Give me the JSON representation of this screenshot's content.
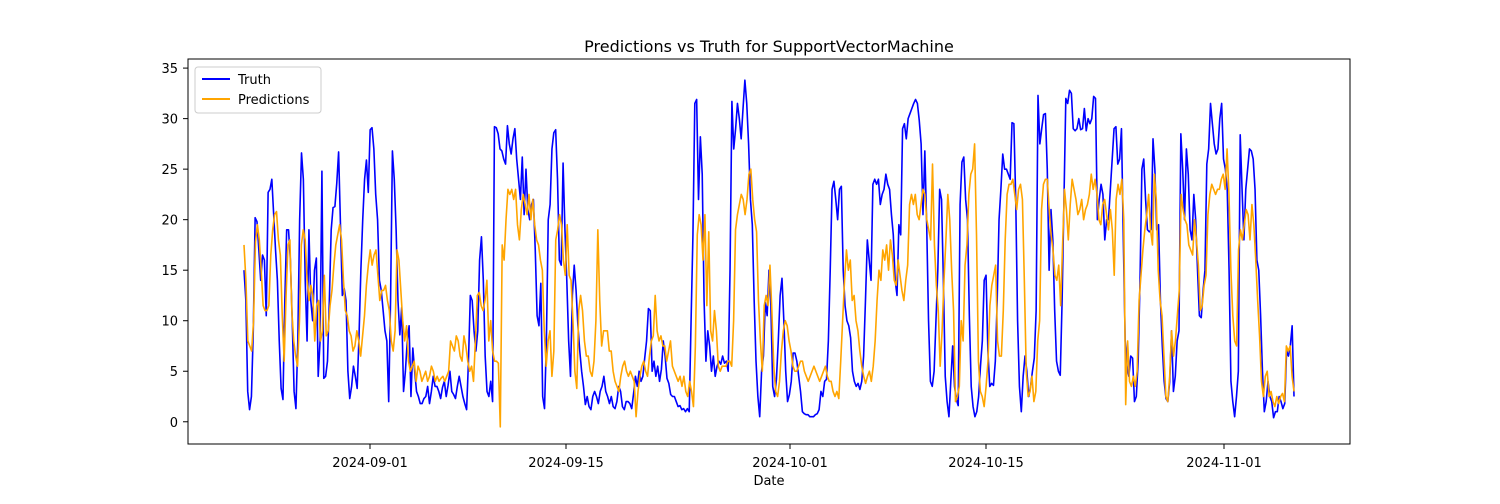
{
  "chart_data": {
    "type": "line",
    "title": "Predictions vs Truth for SupportVectorMachine",
    "xlabel": "Date",
    "ylabel": "",
    "x_ticks": [
      "2024-09-01",
      "2024-09-15",
      "2024-10-01",
      "2024-10-15",
      "2024-11-01"
    ],
    "y_ticks": [
      0,
      5,
      10,
      15,
      20,
      25,
      30,
      35
    ],
    "xlim": [
      "2024-08-19",
      "2024-11-10"
    ],
    "ylim": [
      -2.2,
      35.9
    ],
    "grid": false,
    "legend_position": "top-left",
    "x_start": "2024-08-23",
    "x_end": "2024-11-06",
    "series": [
      {
        "name": "Truth",
        "color": "#0000ff",
        "values": [
          15.0,
          12.0,
          3.0,
          1.2,
          2.5,
          9.0,
          20.2,
          19.8,
          17.0,
          14.0,
          16.5,
          16.0,
          10.5,
          22.7,
          23.0,
          24.0,
          20.5,
          17.0,
          14.0,
          8.0,
          3.3,
          2.2,
          12.0,
          19.0,
          19.0,
          16.0,
          10.0,
          3.0,
          1.3,
          8.0,
          20.0,
          26.6,
          24.0,
          14.0,
          8.0,
          19.0,
          12.0,
          10.0,
          15.0,
          16.2,
          4.5,
          8.0,
          24.8,
          4.3,
          4.5,
          6.0,
          12.0,
          19.0,
          21.2,
          21.3,
          23.6,
          26.7,
          19.5,
          12.5,
          13.2,
          12.0,
          5.0,
          2.3,
          3.5,
          5.5,
          4.5,
          3.3,
          8.5,
          15.0,
          20.0,
          24.0,
          25.9,
          22.7,
          28.9,
          29.1,
          27.0,
          22.5,
          20.0,
          14.0,
          13.0,
          11.0,
          9.0,
          8.0,
          2.0,
          12.0,
          26.8,
          24.0,
          19.0,
          12.0,
          8.6,
          11.3,
          3.0,
          5.0,
          8.0,
          9.5,
          2.5,
          7.3,
          5.0,
          3.0,
          2.5,
          1.8,
          1.8,
          2.3,
          2.5,
          3.5,
          1.8,
          3.0,
          4.5,
          3.5,
          3.5,
          3.0,
          2.3,
          3.4,
          4.0,
          2.5,
          3.6,
          5.0,
          3.0,
          2.7,
          2.3,
          3.5,
          4.5,
          3.5,
          2.5,
          1.8,
          1.2,
          6.0,
          12.5,
          12.0,
          9.0,
          7.0,
          9.0,
          16.0,
          18.3,
          14.0,
          6.5,
          3.0,
          2.5,
          4.0,
          2.0,
          29.2,
          29.1,
          28.5,
          27.0,
          26.8,
          26.0,
          25.5,
          29.3,
          27.5,
          26.5,
          28.0,
          29.0,
          26.0,
          24.0,
          22.0,
          26.2,
          20.5,
          25.0,
          21.0,
          20.0,
          21.5,
          22.0,
          17.0,
          10.5,
          9.5,
          13.7,
          2.5,
          1.3,
          8.0,
          20.0,
          21.5,
          27.0,
          28.6,
          28.9,
          24.0,
          16.0,
          15.5,
          25.6,
          19.0,
          14.0,
          8.0,
          4.5,
          12.5,
          15.5,
          13.0,
          9.5,
          7.0,
          5.0,
          3.5,
          1.7,
          2.5,
          1.5,
          1.2,
          2.5,
          3.0,
          2.5,
          1.8,
          3.0,
          3.5,
          4.5,
          3.0,
          2.5,
          1.8,
          2.5,
          1.5,
          1.3,
          2.0,
          3.5,
          3.0,
          1.5,
          1.2,
          2.0,
          2.0,
          1.8,
          1.3,
          2.8,
          4.5,
          3.5,
          5.0,
          4.0,
          4.5,
          6.3,
          8.0,
          11.2,
          11.0,
          5.0,
          6.0,
          4.5,
          5.5,
          4.0,
          5.2,
          8.0,
          6.5,
          4.3,
          3.8,
          2.7,
          2.5,
          2.5,
          2.0,
          1.5,
          1.6,
          1.2,
          1.3,
          1.0,
          1.3,
          1.0,
          10.0,
          18.5,
          31.5,
          31.9,
          22.0,
          28.2,
          24.5,
          12.0,
          6.0,
          9.0,
          7.5,
          5.0,
          6.5,
          4.5,
          5.5,
          6.0,
          5.7,
          6.5,
          5.8,
          6.0,
          5.0,
          15.0,
          31.7,
          27.0,
          29.0,
          31.5,
          30.0,
          28.0,
          31.0,
          33.8,
          31.5,
          27.5,
          22.0,
          19.5,
          12.0,
          6.0,
          2.5,
          0.5,
          5.0,
          6.5,
          11.8,
          10.5,
          15.0,
          11.5,
          3.5,
          2.5,
          4.2,
          8.0,
          12.5,
          14.2,
          10.0,
          5.0,
          2.0,
          2.7,
          4.0,
          6.8,
          6.8,
          6.0,
          4.5,
          3.0,
          1.0,
          0.8,
          0.7,
          0.7,
          0.5,
          0.5,
          0.5,
          0.7,
          0.8,
          1.2,
          3.0,
          2.5,
          4.0,
          4.2,
          8.0,
          15.0,
          23.0,
          23.8,
          22.0,
          20.0,
          23.0,
          23.3,
          15.0,
          11.5,
          10.0,
          9.5,
          8.3,
          5.0,
          4.0,
          3.5,
          3.8,
          3.2,
          4.0,
          6.5,
          12.0,
          18.0,
          16.0,
          14.0,
          23.5,
          24.0,
          23.5,
          24.0,
          21.5,
          22.5,
          23.0,
          24.5,
          23.5,
          23.0,
          20.5,
          18.5,
          14.0,
          12.5,
          19.5,
          18.5,
          29.0,
          29.5,
          28.0,
          30.0,
          30.5,
          31.0,
          31.5,
          31.9,
          31.5,
          29.8,
          27.5,
          20.5,
          26.8,
          19.5,
          10.0,
          4.0,
          3.5,
          5.0,
          10.0,
          15.0,
          23.0,
          22.0,
          14.0,
          4.5,
          2.0,
          0.5,
          4.0,
          7.5,
          3.5,
          2.2,
          1.6,
          21.5,
          25.7,
          26.2,
          22.0,
          20.0,
          10.5,
          3.5,
          1.5,
          0.5,
          1.0,
          2.5,
          5.5,
          8.0,
          14.0,
          14.5,
          7.0,
          3.5,
          3.8,
          3.6,
          6.0,
          12.0,
          20.0,
          23.0,
          26.5,
          25.0,
          25.0,
          24.5,
          24.0,
          29.6,
          29.5,
          22.0,
          10.0,
          3.5,
          1.0,
          4.5,
          6.5,
          5.0,
          2.5,
          3.5,
          5.0,
          6.3,
          11.0,
          32.3,
          27.5,
          29.0,
          30.4,
          30.5,
          25.0,
          15.0,
          21.0,
          18.0,
          11.0,
          6.0,
          5.0,
          4.6,
          12.0,
          22.0,
          32.0,
          31.5,
          32.8,
          32.5,
          29.0,
          28.8,
          29.0,
          30.0,
          28.9,
          29.0,
          31.0,
          28.8,
          30.0,
          29.5,
          30.0,
          32.2,
          32.0,
          20.0,
          22.0,
          23.5,
          22.5,
          18.0,
          20.0,
          20.0,
          23.0,
          26.0,
          29.0,
          29.2,
          25.5,
          26.0,
          29.0,
          18.0,
          8.0,
          5.5,
          4.5,
          6.5,
          6.3,
          2.0,
          2.5,
          6.0,
          14.0,
          25.0,
          26.0,
          22.0,
          19.0,
          18.8,
          19.0,
          28.0,
          25.0,
          19.0,
          19.5,
          12.0,
          7.5,
          4.0,
          2.3,
          2.0,
          4.0,
          9.0,
          3.0,
          4.5,
          8.0,
          9.0,
          28.5,
          25.0,
          20.0,
          27.0,
          24.5,
          19.0,
          18.0,
          22.5,
          20.0,
          15.0,
          10.5,
          10.3,
          13.0,
          15.0,
          25.5,
          27.0,
          31.5,
          29.5,
          27.5,
          26.5,
          27.0,
          30.0,
          31.5,
          26.0,
          25.0,
          23.0,
          15.0,
          4.0,
          2.0,
          0.5,
          2.5,
          5.0,
          28.4,
          23.0,
          18.0,
          23.0,
          25.0,
          27.0,
          26.8,
          26.0,
          23.0,
          16.0,
          15.0,
          10.5,
          5.0,
          1.0,
          2.0,
          4.0,
          2.5,
          2.0,
          0.4,
          1.0,
          1.0,
          2.5,
          2.0,
          1.3,
          1.8,
          7.0,
          6.5,
          7.5,
          9.5,
          2.5
        ]
      },
      {
        "name": "Predictions",
        "color": "#ffa500",
        "values": [
          17.5,
          14.0,
          8.0,
          7.5,
          7.0,
          10.0,
          17.8,
          19.5,
          18.0,
          15.0,
          11.5,
          11.0,
          11.0,
          11.5,
          16.5,
          19.0,
          20.5,
          20.8,
          18.0,
          16.5,
          10.5,
          6.0,
          12.5,
          17.5,
          18.0,
          11.0,
          8.0,
          6.5,
          5.5,
          10.0,
          17.5,
          19.0,
          18.0,
          14.0,
          12.0,
          13.5,
          12.5,
          8.0,
          11.5,
          12.0,
          8.0,
          9.0,
          14.5,
          8.5,
          9.0,
          11.5,
          13.0,
          15.5,
          17.5,
          18.5,
          19.5,
          18.0,
          14.0,
          11.0,
          10.5,
          9.0,
          8.5,
          7.0,
          7.5,
          9.0,
          8.0,
          6.5,
          8.5,
          10.5,
          13.5,
          15.5,
          17.0,
          15.5,
          16.5,
          17.0,
          14.5,
          12.0,
          13.0,
          13.0,
          13.5,
          12.0,
          11.0,
          8.0,
          7.0,
          9.0,
          17.0,
          16.0,
          13.0,
          10.0,
          8.0,
          9.5,
          6.0,
          5.0,
          5.5,
          6.0,
          4.0,
          5.5,
          5.0,
          4.0,
          4.5,
          5.0,
          4.0,
          4.5,
          5.5,
          5.0,
          4.0,
          4.5,
          4.0,
          4.3,
          4.5,
          4.0,
          4.5,
          5.0,
          8.0,
          7.5,
          7.0,
          8.5,
          8.0,
          6.5,
          6.0,
          8.5,
          7.5,
          6.0,
          5.0,
          5.5,
          4.0,
          8.0,
          12.5,
          12.8,
          11.5,
          11.0,
          12.0,
          14.0,
          8.0,
          10.0,
          7.0,
          6.0,
          6.0,
          5.8,
          -0.5,
          17.5,
          16.0,
          20.0,
          23.0,
          22.5,
          23.0,
          22.0,
          23.0,
          19.5,
          18.0,
          21.0,
          22.5,
          21.5,
          20.5,
          22.5,
          20.0,
          22.0,
          19.5,
          18.0,
          17.5,
          16.0,
          15.0,
          9.0,
          5.5,
          8.0,
          9.0,
          4.5,
          7.0,
          18.0,
          19.0,
          20.5,
          19.5,
          16.0,
          14.5,
          19.5,
          14.5,
          14.0,
          10.0,
          5.0,
          3.3,
          11.0,
          12.5,
          11.0,
          8.0,
          6.5,
          6.5,
          5.0,
          4.5,
          6.0,
          10.0,
          19.0,
          12.0,
          7.5,
          9.0,
          9.0,
          9.0,
          7.0,
          7.0,
          5.0,
          4.0,
          3.5,
          3.0,
          4.5,
          5.5,
          6.0,
          5.0,
          4.5,
          5.0,
          4.5,
          4.0,
          0.5,
          3.0,
          4.5,
          5.5,
          6.0,
          5.0,
          4.5,
          6.5,
          8.0,
          8.5,
          12.5,
          9.0,
          8.0,
          8.5,
          7.5,
          7.5,
          6.0,
          7.0,
          8.0,
          5.5,
          5.0,
          4.5,
          4.0,
          4.5,
          3.5,
          4.5,
          3.0,
          2.5,
          4.0,
          3.0,
          1.5,
          7.5,
          18.5,
          20.5,
          19.5,
          16.0,
          20.5,
          11.5,
          18.8,
          9.0,
          8.0,
          11.0,
          9.0,
          5.5,
          5.0,
          5.5,
          5.5,
          5.5,
          6.0,
          6.0,
          5.5,
          10.0,
          19.0,
          20.5,
          21.5,
          22.5,
          22.0,
          20.5,
          22.0,
          24.5,
          25.0,
          22.0,
          20.0,
          18.8,
          12.0,
          8.0,
          5.0,
          11.5,
          12.5,
          11.5,
          15.5,
          11.0,
          5.5,
          3.0,
          2.5,
          4.0,
          7.0,
          9.0,
          10.0,
          9.5,
          8.0,
          7.0,
          5.5,
          5.0,
          5.0,
          5.5,
          6.0,
          6.0,
          5.0,
          4.5,
          4.0,
          4.5,
          5.0,
          5.5,
          5.0,
          4.5,
          4.0,
          4.5,
          5.0,
          5.5,
          4.5,
          4.0,
          4.0,
          3.0,
          2.5,
          3.0,
          2.3,
          6.0,
          10.0,
          14.0,
          17.0,
          15.0,
          16.0,
          12.0,
          12.5,
          10.0,
          9.0,
          7.0,
          5.5,
          4.5,
          3.8,
          4.5,
          5.0,
          4.0,
          5.5,
          8.0,
          12.0,
          15.0,
          14.0,
          17.0,
          16.0,
          17.5,
          15.0,
          18.0,
          16.5,
          14.0,
          13.5,
          16.0,
          14.5,
          13.0,
          12.0,
          14.0,
          15.5,
          21.5,
          22.5,
          21.5,
          22.5,
          20.5,
          20.0,
          21.5,
          23.0,
          22.5,
          20.0,
          19.0,
          18.0,
          25.5,
          17.5,
          13.5,
          11.0,
          5.5,
          9.0,
          14.0,
          18.0,
          22.5,
          20.0,
          15.0,
          11.0,
          2.0,
          2.5,
          3.5,
          10.0,
          8.0,
          15.5,
          17.5,
          22.5,
          24.5,
          25.0,
          27.5,
          18.5,
          6.0,
          3.0,
          2.5,
          1.5,
          3.5,
          6.0,
          11.5,
          13.5,
          14.5,
          15.5,
          8.0,
          6.5,
          6.5,
          11.0,
          18.0,
          22.5,
          23.5,
          23.5,
          24.0,
          22.5,
          21.0,
          23.0,
          23.5,
          22.0,
          14.0,
          5.0,
          2.5,
          3.0,
          4.5,
          2.0,
          3.0,
          8.0,
          10.0,
          21.0,
          23.5,
          24.0,
          24.0,
          21.0,
          18.5,
          17.0,
          14.5,
          14.0,
          15.5,
          11.5,
          17.5,
          23.0,
          21.0,
          18.0,
          21.5,
          24.0,
          23.0,
          22.0,
          20.5,
          21.0,
          22.0,
          20.0,
          21.0,
          21.5,
          22.5,
          24.5,
          23.0,
          24.0,
          22.5,
          20.0,
          19.5,
          21.5,
          22.0,
          20.5,
          19.0,
          21.0,
          19.0,
          14.5,
          22.0,
          23.5,
          22.5,
          24.0,
          20.0,
          1.7,
          8.0,
          4.0,
          3.5,
          4.5,
          3.5,
          5.0,
          12.0,
          14.5,
          17.0,
          19.0,
          20.5,
          22.5,
          19.0,
          17.5,
          24.5,
          22.0,
          15.0,
          12.0,
          10.5,
          6.5,
          2.5,
          2.0,
          4.5,
          9.0,
          6.5,
          8.0,
          10.5,
          13.0,
          22.5,
          21.0,
          20.0,
          19.5,
          17.5,
          17.0,
          16.5,
          20.0,
          18.0,
          15.5,
          11.0,
          11.5,
          13.5,
          14.5,
          20.5,
          22.5,
          23.5,
          23.0,
          22.5,
          23.0,
          23.0,
          24.0,
          24.5,
          23.0,
          27.0,
          22.5,
          15.0,
          10.5,
          8.0,
          7.5,
          17.0,
          19.0,
          18.0,
          19.5,
          21.0,
          20.5,
          18.0,
          21.5,
          19.5,
          16.0,
          12.0,
          8.5,
          4.0,
          2.5,
          4.5,
          5.0,
          2.5,
          3.0,
          2.0,
          1.5,
          2.5,
          1.8,
          2.5,
          2.8,
          2.0,
          7.5,
          7.0,
          7.5,
          4.5,
          3.0
        ]
      }
    ]
  }
}
